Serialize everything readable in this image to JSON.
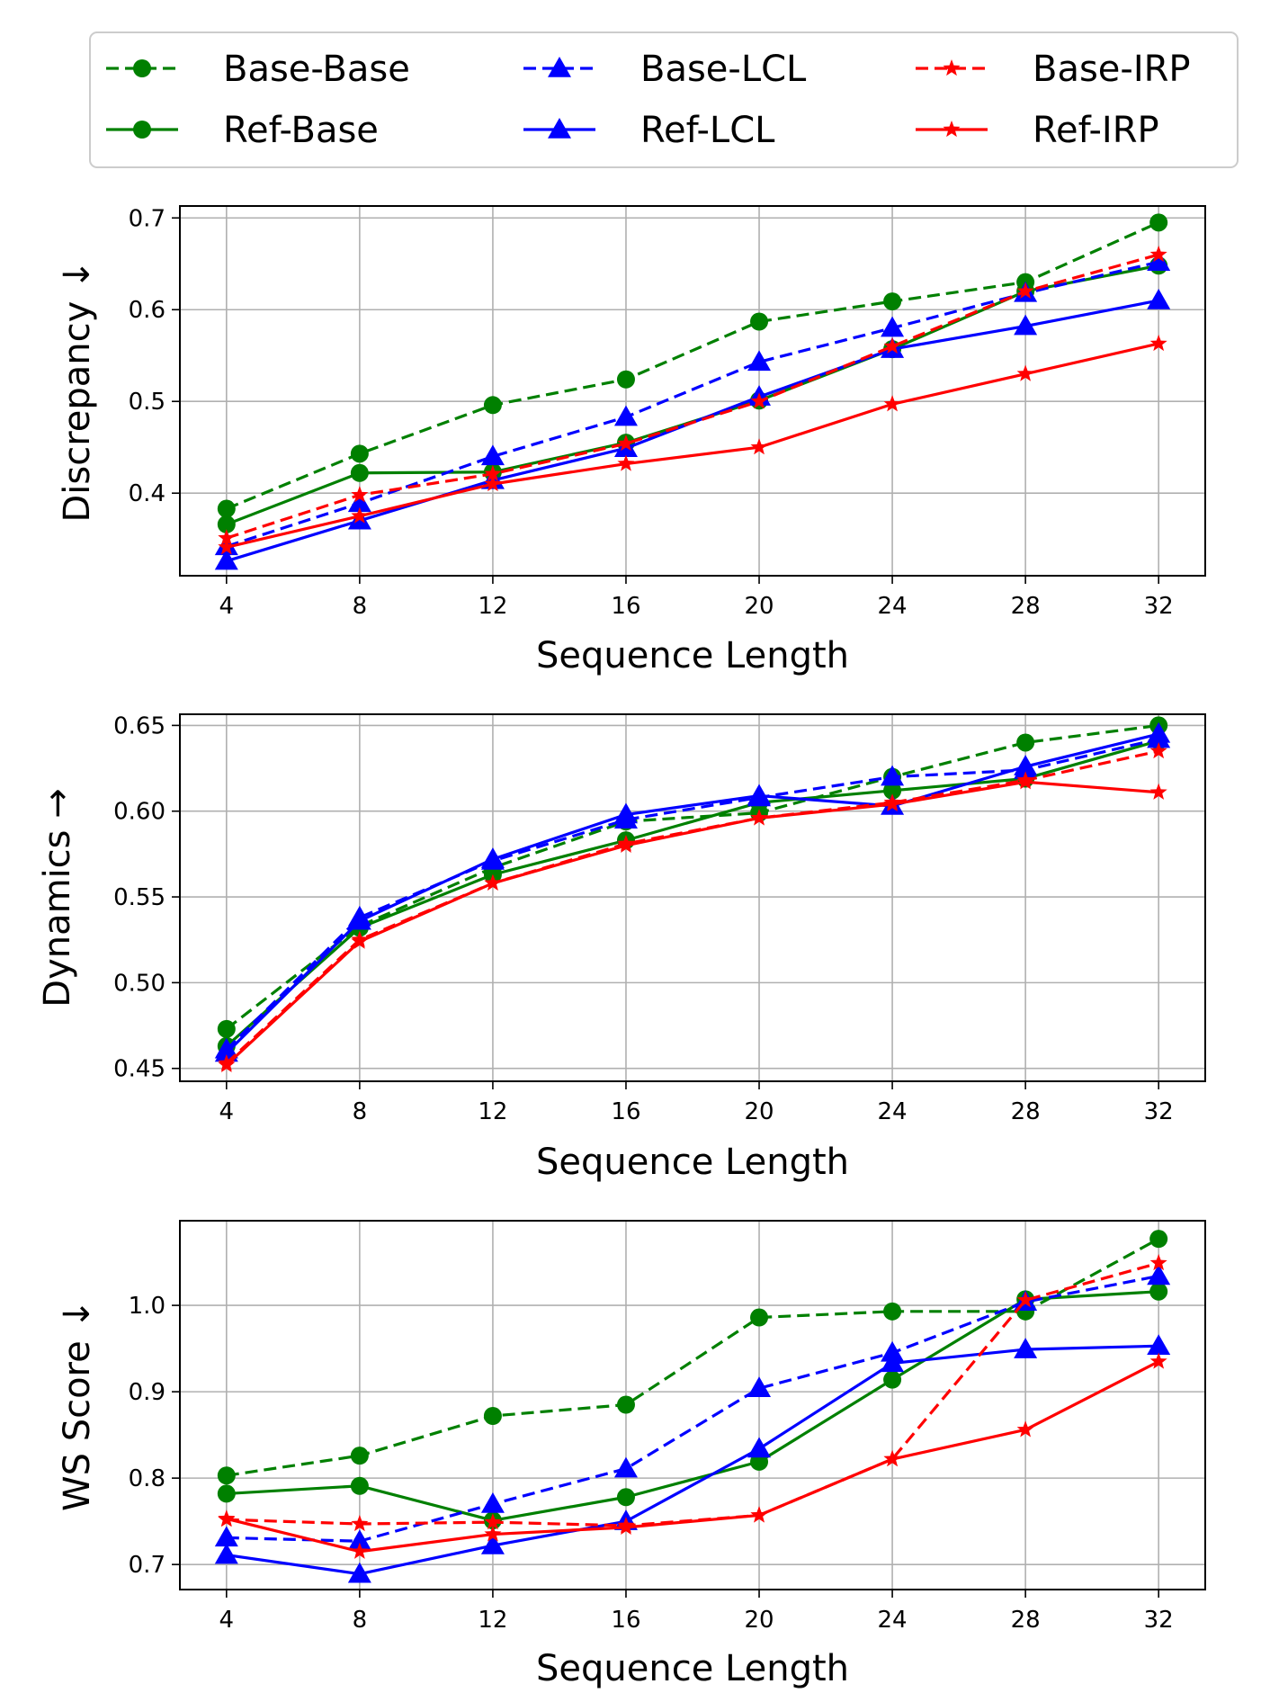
{
  "colors": {
    "Base": "#008000",
    "LCL": "#0000ff",
    "IRP": "#ff0000"
  },
  "legend": [
    {
      "label": "Base-Base",
      "color": "#008000",
      "dashed": true,
      "marker": "circle"
    },
    {
      "label": "Base-LCL",
      "color": "#0000ff",
      "dashed": true,
      "marker": "triangle"
    },
    {
      "label": "Base-IRP",
      "color": "#ff0000",
      "dashed": true,
      "marker": "star"
    },
    {
      "label": "Ref-Base",
      "color": "#008000",
      "dashed": false,
      "marker": "circle"
    },
    {
      "label": "Ref-LCL",
      "color": "#0000ff",
      "dashed": false,
      "marker": "triangle"
    },
    {
      "label": "Ref-IRP",
      "color": "#ff0000",
      "dashed": false,
      "marker": "star"
    }
  ],
  "chart_data": [
    {
      "type": "line",
      "xlabel": "Sequence Length",
      "ylabel": "Discrepancy  ↓",
      "x": [
        4,
        8,
        12,
        16,
        20,
        24,
        28,
        32
      ],
      "xticks": [
        "4",
        "8",
        "12",
        "16",
        "20",
        "24",
        "28",
        "32"
      ],
      "xlim": [
        2.6,
        33.4
      ],
      "ylim": [
        0.31,
        0.713
      ],
      "yticks": [
        0.4,
        0.5,
        0.6,
        0.7
      ],
      "ytick_labels": [
        "0.4",
        "0.5",
        "0.6",
        "0.7"
      ],
      "grid": true,
      "series": [
        {
          "name": "Base-Base",
          "color": "#008000",
          "dashed": true,
          "marker": "circle",
          "values": [
            0.383,
            0.443,
            0.496,
            0.524,
            0.587,
            0.609,
            0.63,
            0.695
          ]
        },
        {
          "name": "Ref-Base",
          "color": "#008000",
          "dashed": false,
          "marker": "circle",
          "values": [
            0.366,
            0.422,
            0.423,
            0.455,
            0.501,
            0.557,
            0.62,
            0.648
          ]
        },
        {
          "name": "Base-LCL",
          "color": "#0000ff",
          "dashed": true,
          "marker": "triangle",
          "values": [
            0.342,
            0.389,
            0.44,
            0.483,
            0.543,
            0.58,
            0.618,
            0.652
          ]
        },
        {
          "name": "Ref-LCL",
          "color": "#0000ff",
          "dashed": false,
          "marker": "triangle",
          "values": [
            0.326,
            0.37,
            0.414,
            0.449,
            0.505,
            0.557,
            0.582,
            0.61
          ]
        },
        {
          "name": "Base-IRP",
          "color": "#ff0000",
          "dashed": true,
          "marker": "star",
          "values": [
            0.351,
            0.398,
            0.421,
            0.454,
            0.5,
            0.56,
            0.62,
            0.66
          ]
        },
        {
          "name": "Ref-IRP",
          "color": "#ff0000",
          "dashed": false,
          "marker": "star",
          "values": [
            0.341,
            0.375,
            0.41,
            0.432,
            0.45,
            0.497,
            0.53,
            0.563
          ]
        }
      ]
    },
    {
      "type": "line",
      "xlabel": "Sequence Length",
      "ylabel": "Dynamics →",
      "x": [
        4,
        8,
        12,
        16,
        20,
        24,
        28,
        32
      ],
      "xticks": [
        "4",
        "8",
        "12",
        "16",
        "20",
        "24",
        "28",
        "32"
      ],
      "xlim": [
        2.6,
        33.4
      ],
      "ylim": [
        0.4425,
        0.6565
      ],
      "yticks": [
        0.45,
        0.5,
        0.55,
        0.6,
        0.65
      ],
      "ytick_labels": [
        "0.45",
        "0.50",
        "0.55",
        "0.60",
        "0.65"
      ],
      "grid": true,
      "series": [
        {
          "name": "Base-Base",
          "color": "#008000",
          "dashed": true,
          "marker": "circle",
          "values": [
            0.473,
            0.533,
            0.567,
            0.594,
            0.599,
            0.62,
            0.64,
            0.65
          ]
        },
        {
          "name": "Ref-Base",
          "color": "#008000",
          "dashed": false,
          "marker": "circle",
          "values": [
            0.463,
            0.532,
            0.563,
            0.583,
            0.605,
            0.612,
            0.619,
            0.641
          ]
        },
        {
          "name": "Base-LCL",
          "color": "#0000ff",
          "dashed": true,
          "marker": "triangle",
          "values": [
            0.461,
            0.538,
            0.571,
            0.595,
            0.608,
            0.62,
            0.624,
            0.642
          ]
        },
        {
          "name": "Ref-LCL",
          "color": "#0000ff",
          "dashed": false,
          "marker": "triangle",
          "values": [
            0.459,
            0.536,
            0.572,
            0.598,
            0.609,
            0.603,
            0.626,
            0.645
          ]
        },
        {
          "name": "Base-IRP",
          "color": "#ff0000",
          "dashed": true,
          "marker": "star",
          "values": [
            0.453,
            0.525,
            0.558,
            0.581,
            0.596,
            0.605,
            0.618,
            0.635
          ]
        },
        {
          "name": "Ref-IRP",
          "color": "#ff0000",
          "dashed": false,
          "marker": "star",
          "values": [
            0.452,
            0.524,
            0.558,
            0.58,
            0.596,
            0.604,
            0.617,
            0.611
          ]
        }
      ]
    },
    {
      "type": "line",
      "xlabel": "Sequence Length",
      "ylabel": "WS Score ↓",
      "x": [
        4,
        8,
        12,
        16,
        20,
        24,
        28,
        32
      ],
      "xticks": [
        "4",
        "8",
        "12",
        "16",
        "20",
        "24",
        "28",
        "32"
      ],
      "xlim": [
        2.6,
        33.4
      ],
      "ylim": [
        0.671,
        1.098
      ],
      "yticks": [
        0.7,
        0.8,
        0.9,
        1.0
      ],
      "ytick_labels": [
        "0.7",
        "0.8",
        "0.9",
        "1.0"
      ],
      "grid": true,
      "series": [
        {
          "name": "Base-Base",
          "color": "#008000",
          "dashed": true,
          "marker": "circle",
          "values": [
            0.803,
            0.826,
            0.872,
            0.885,
            0.986,
            0.993,
            0.993,
            1.077
          ]
        },
        {
          "name": "Ref-Base",
          "color": "#008000",
          "dashed": false,
          "marker": "circle",
          "values": [
            0.782,
            0.791,
            0.751,
            0.778,
            0.819,
            0.914,
            1.007,
            1.016
          ]
        },
        {
          "name": "Base-LCL",
          "color": "#0000ff",
          "dashed": true,
          "marker": "triangle",
          "values": [
            0.731,
            0.727,
            0.77,
            0.811,
            0.904,
            0.945,
            1.004,
            1.034
          ]
        },
        {
          "name": "Ref-LCL",
          "color": "#0000ff",
          "dashed": false,
          "marker": "triangle",
          "values": [
            0.711,
            0.689,
            0.722,
            0.75,
            0.834,
            0.933,
            0.949,
            0.953
          ]
        },
        {
          "name": "Base-IRP",
          "color": "#ff0000",
          "dashed": true,
          "marker": "star",
          "values": [
            0.752,
            0.747,
            0.749,
            0.745,
            0.757,
            0.822,
            1.006,
            1.049
          ]
        },
        {
          "name": "Ref-IRP",
          "color": "#ff0000",
          "dashed": false,
          "marker": "star",
          "values": [
            0.753,
            0.715,
            0.735,
            0.743,
            0.757,
            0.822,
            0.856,
            0.935
          ]
        }
      ]
    }
  ]
}
